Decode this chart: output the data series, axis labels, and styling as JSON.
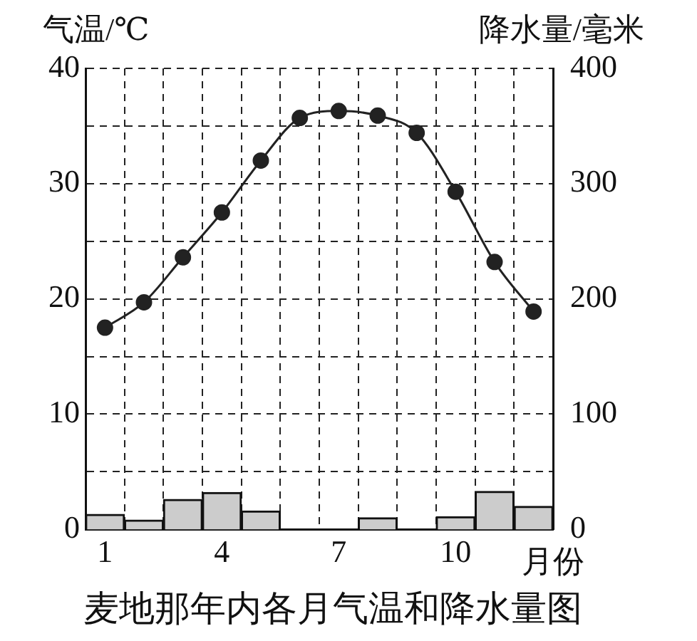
{
  "chart_data": {
    "type": "bar",
    "title": "麦地那年内各月气温和降水量图",
    "xlabel": "月份",
    "ylabel": "气温/℃",
    "y2label": "降水量/毫米",
    "categories": [
      "1",
      null,
      null,
      "4",
      null,
      null,
      "7",
      null,
      null,
      "10",
      null,
      null
    ],
    "series": [
      {
        "type": "bar",
        "axis": "y2",
        "color": "#cccccc",
        "values": [
          13,
          8,
          26,
          32,
          16,
          0,
          0,
          10,
          0,
          11,
          33,
          20
        ]
      },
      {
        "type": "line",
        "axis": "y",
        "color": "#222222",
        "marker": "circle",
        "values": [
          17.5,
          19.7,
          23.6,
          27.5,
          32,
          35.7,
          36.3,
          35.9,
          34.4,
          29.3,
          23.2,
          18.9
        ]
      }
    ],
    "ylim": [
      0,
      40
    ],
    "yticks": [
      0,
      {
        "value": 5,
        "label": null
      },
      10,
      {
        "value": 15,
        "label": null
      },
      20,
      {
        "value": 25,
        "label": null
      },
      30,
      {
        "value": 35,
        "label": null
      },
      40
    ],
    "y2lim": [
      0,
      400
    ],
    "y2ticks": [
      0,
      100,
      200,
      300,
      400
    ],
    "grid": true,
    "line_style": "solid"
  }
}
